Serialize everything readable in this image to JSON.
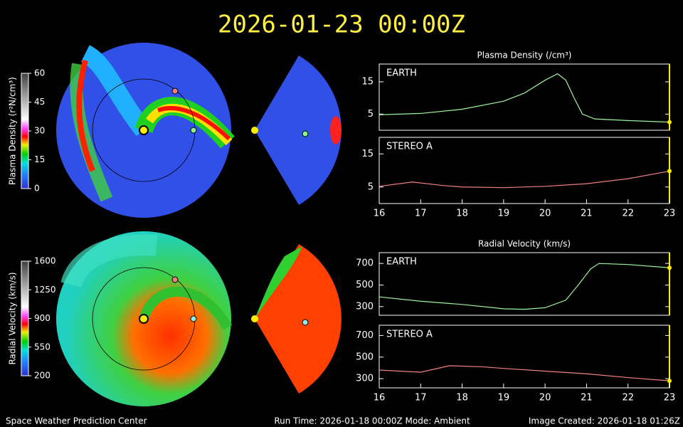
{
  "header": {
    "title": "2026-01-23  00:00Z"
  },
  "colorbars": [
    {
      "label": "Plasma Density (r²N/cm³)",
      "range": [
        0,
        60
      ],
      "ticks": [
        0,
        15,
        30,
        45,
        60
      ]
    },
    {
      "label": "Radial Velocity (km/s)",
      "range": [
        200,
        1600
      ],
      "ticks": [
        200,
        550,
        900,
        1250,
        1600
      ]
    }
  ],
  "footer": {
    "left": "Space Weather Prediction Center",
    "center": "Run Time: 2026-01-18 00:00Z  Mode: Ambient",
    "right": "Image Created: 2026-01-18 01:26Z"
  },
  "chart_data": [
    {
      "type": "line",
      "title": "Plasma Density (/cm³)",
      "label": "EARTH",
      "color": "#9cf59c",
      "x": [
        16,
        17,
        18,
        19,
        19.5,
        20,
        20.3,
        20.5,
        20.7,
        20.9,
        21.2,
        22,
        23
      ],
      "values": [
        4.8,
        5.2,
        6.5,
        9,
        11.5,
        15.5,
        17.5,
        15.5,
        10,
        5,
        3.5,
        3,
        2.5
      ],
      "xlim": [
        16,
        23
      ],
      "ylim": [
        0,
        20.5
      ],
      "yticks": [
        5,
        15
      ]
    },
    {
      "type": "line",
      "label": "STEREO A",
      "color": "#f08080",
      "x": [
        16,
        16.8,
        17.5,
        18,
        19,
        20,
        21,
        22,
        23
      ],
      "values": [
        5.2,
        6.5,
        5.5,
        5,
        4.8,
        5.2,
        6,
        7.5,
        9.8
      ],
      "xlim": [
        16,
        23
      ],
      "ylim": [
        0,
        20
      ],
      "yticks": [
        5,
        15
      ],
      "xticks": [
        16,
        17,
        18,
        19,
        20,
        21,
        22,
        23
      ]
    },
    {
      "type": "line",
      "title": "Radial Velocity (km/s)",
      "label": "EARTH",
      "color": "#9cf59c",
      "x": [
        16,
        17,
        18,
        19,
        19.5,
        20,
        20.5,
        20.8,
        21.1,
        21.3,
        22,
        23
      ],
      "values": [
        390,
        350,
        320,
        280,
        275,
        290,
        360,
        500,
        650,
        700,
        690,
        660
      ],
      "xlim": [
        16,
        23
      ],
      "ylim": [
        220,
        800
      ],
      "yticks": [
        300,
        500,
        700
      ]
    },
    {
      "type": "line",
      "label": "STEREO A",
      "color": "#f08080",
      "x": [
        16,
        17,
        17.7,
        18.5,
        19,
        20,
        21,
        22,
        23
      ],
      "values": [
        380,
        360,
        420,
        410,
        395,
        370,
        345,
        310,
        280
      ],
      "xlim": [
        16,
        23
      ],
      "ylim": [
        215,
        795
      ],
      "yticks": [
        300,
        500,
        700
      ],
      "xticks": [
        16,
        17,
        18,
        19,
        20,
        21,
        22,
        23
      ]
    }
  ]
}
